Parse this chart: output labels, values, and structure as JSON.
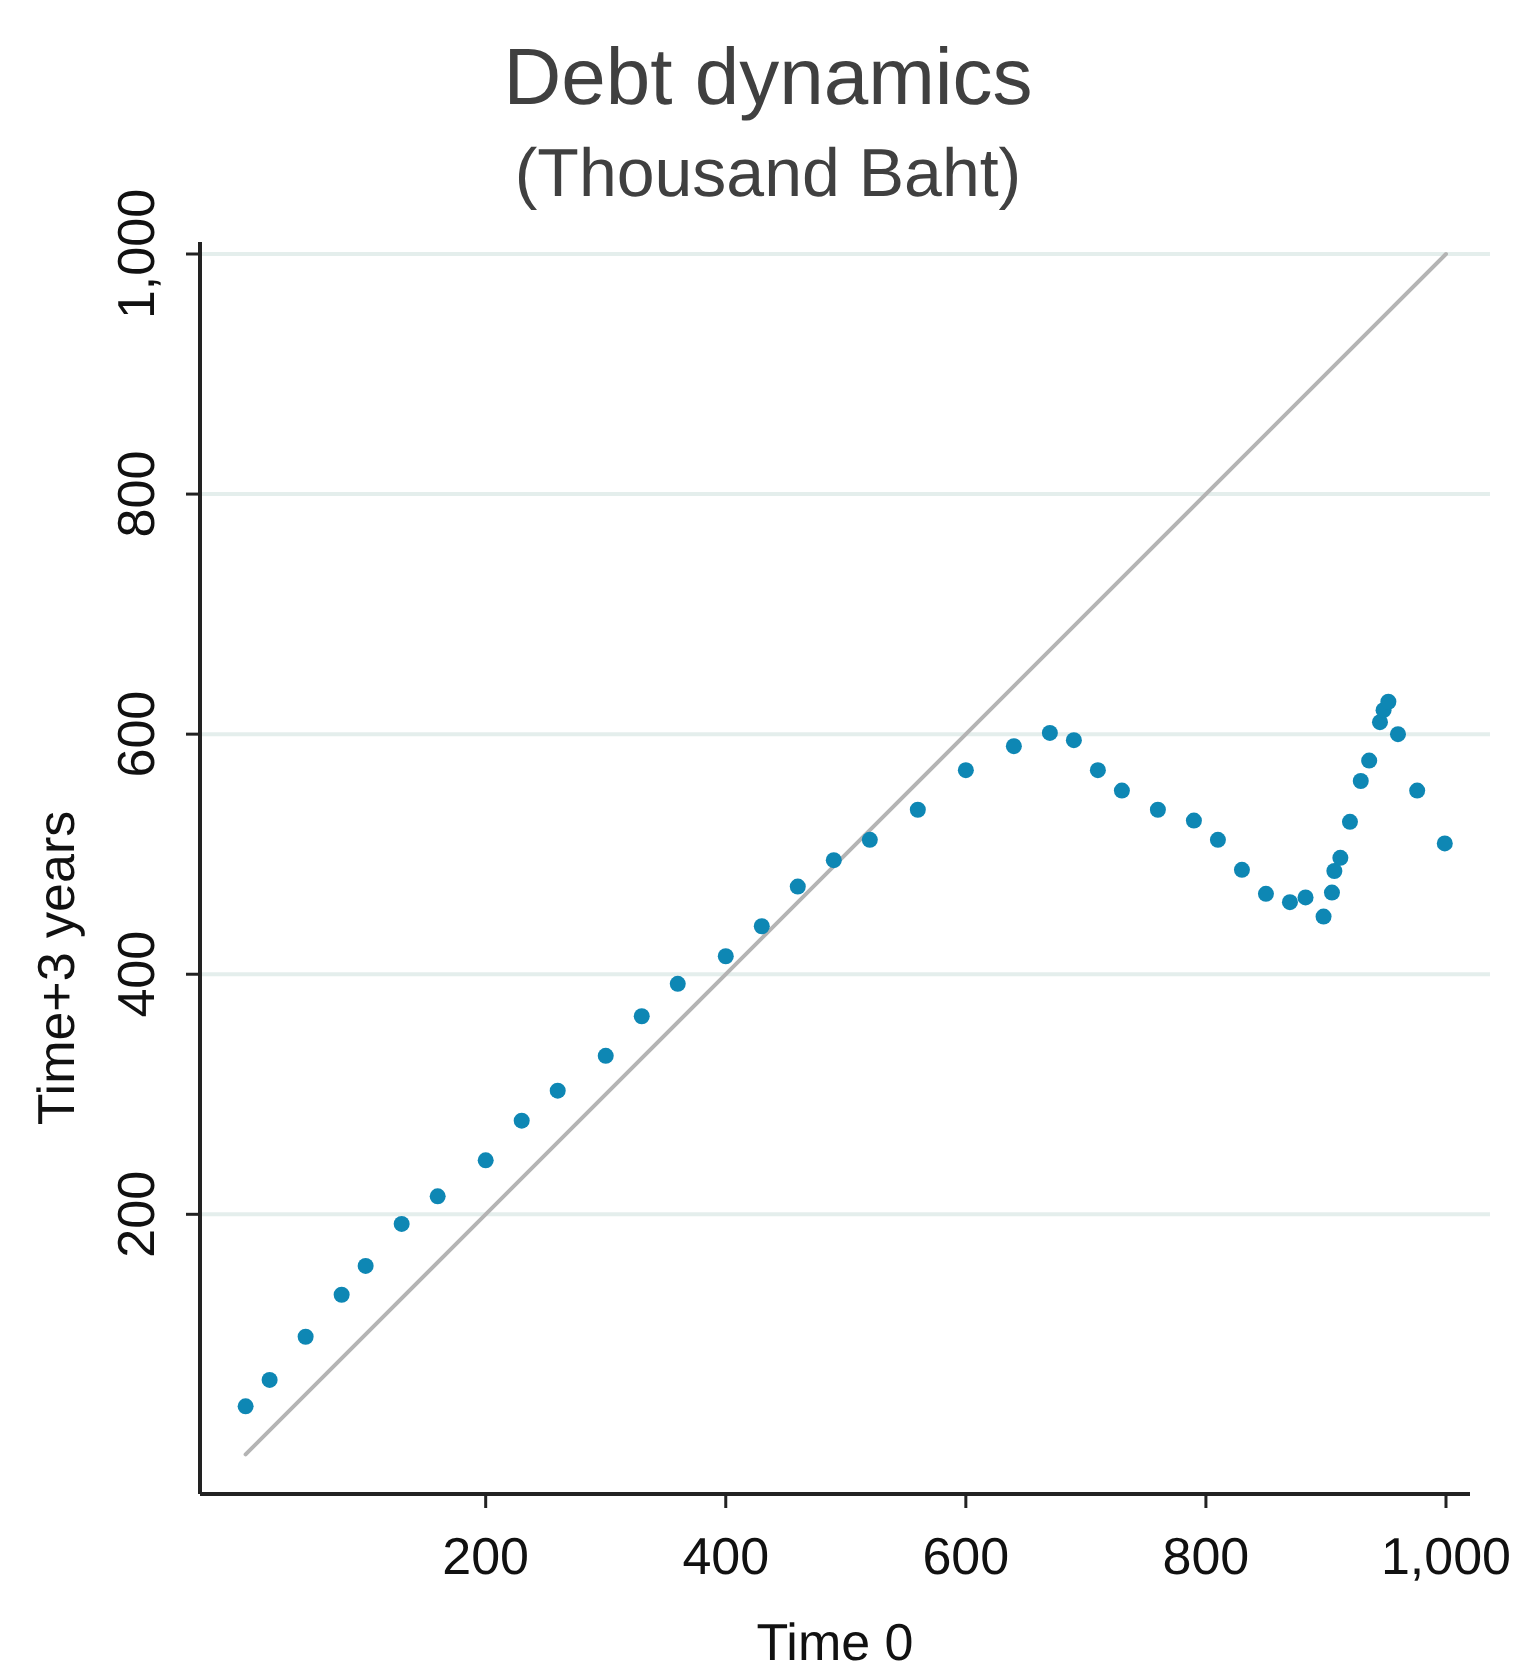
{
  "chart_data": {
    "type": "scatter",
    "title": "Debt dynamics",
    "subtitle": "(Thousand Baht)",
    "xlabel": "Time 0",
    "ylabel": "Time+3 years",
    "xlim": [
      -38,
      1020
    ],
    "ylim": [
      -33,
      1010
    ],
    "xticks": [
      200,
      400,
      600,
      800,
      {
        "value": 1000,
        "label": "1,000"
      }
    ],
    "yticks": [
      200,
      400,
      600,
      800,
      {
        "value": 1000,
        "label": "1,000"
      }
    ],
    "grid": "y",
    "marker": "circle",
    "series": [
      {
        "type": "line",
        "color": "#b4b4b4",
        "x": [
          0,
          1000
        ],
        "values": [
          0,
          1000
        ],
        "marker": "none",
        "line_style": "solid"
      },
      {
        "color": "#0e87b4",
        "x": [
          0,
          20,
          50,
          80,
          100,
          130,
          160,
          200,
          230,
          260,
          300,
          330,
          360,
          400,
          430,
          460,
          490,
          520,
          560,
          600,
          640,
          670,
          690,
          710,
          730,
          760,
          790,
          810,
          830,
          850,
          870,
          883,
          898,
          905,
          907,
          912,
          920,
          929,
          936,
          945,
          948,
          952,
          960,
          976,
          999
        ],
        "values": [
          40,
          62,
          98,
          133,
          157,
          192,
          215,
          245,
          278,
          303,
          332,
          365,
          392,
          415,
          440,
          473,
          495,
          512,
          537,
          570,
          590,
          601,
          595,
          570,
          553,
          537,
          528,
          512,
          487,
          467,
          460,
          464,
          448,
          468,
          486,
          497,
          527,
          561,
          578,
          610,
          620,
          627,
          600,
          553,
          509
        ]
      }
    ]
  }
}
